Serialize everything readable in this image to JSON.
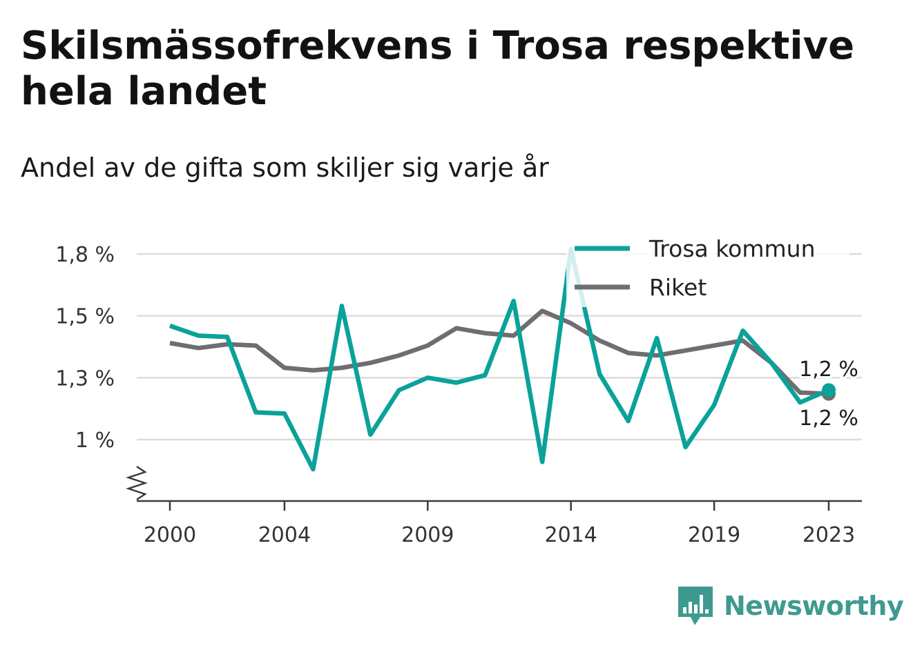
{
  "title": "Skilsmässofrekvens i Trosa respektive hela landet",
  "subtitle": "Andel av de gifta som skiljer sig varje år",
  "brand": {
    "name": "Newsworthy",
    "icon": "bar-chart-speech-bubble-icon",
    "color": "#3e9a8f"
  },
  "chart_data": {
    "type": "line",
    "title": "Skilsmässofrekvens i Trosa respektive hela landet",
    "subtitle": "Andel av de gifta som skiljer sig varje år",
    "xlabel": "",
    "ylabel": "",
    "x": [
      2000,
      2001,
      2002,
      2003,
      2004,
      2005,
      2006,
      2007,
      2008,
      2009,
      2010,
      2011,
      2012,
      2013,
      2014,
      2015,
      2016,
      2017,
      2018,
      2019,
      2020,
      2021,
      2022,
      2023
    ],
    "x_ticks": [
      "2000",
      "2004",
      "2009",
      "2014",
      "2019",
      "2023"
    ],
    "x_tick_values": [
      2000,
      2004,
      2009,
      2014,
      2019,
      2023
    ],
    "ylim": [
      0.75,
      1.8
    ],
    "y_ticks": [
      "1 %",
      "1,3 %",
      "1,5 %",
      "1,8 %"
    ],
    "y_tick_values": [
      1.0,
      1.25,
      1.5,
      1.75
    ],
    "axis_break": true,
    "grid": true,
    "legend_position": "top-right",
    "series": [
      {
        "name": "Trosa kommun",
        "color": "#0aa29a",
        "values": [
          1.46,
          1.42,
          1.415,
          1.11,
          1.105,
          0.88,
          1.54,
          1.02,
          1.2,
          1.25,
          1.23,
          1.26,
          1.56,
          0.91,
          1.77,
          1.265,
          1.075,
          1.41,
          0.97,
          1.14,
          1.44,
          1.31,
          1.15,
          1.2
        ],
        "end_label": "1,2 %"
      },
      {
        "name": "Riket",
        "color": "#6e6d72",
        "values": [
          1.39,
          1.37,
          1.385,
          1.38,
          1.29,
          1.28,
          1.29,
          1.31,
          1.34,
          1.38,
          1.45,
          1.43,
          1.42,
          1.52,
          1.47,
          1.4,
          1.35,
          1.34,
          1.36,
          1.38,
          1.4,
          1.31,
          1.19,
          1.185
        ],
        "end_label": "1,2 %"
      }
    ]
  }
}
